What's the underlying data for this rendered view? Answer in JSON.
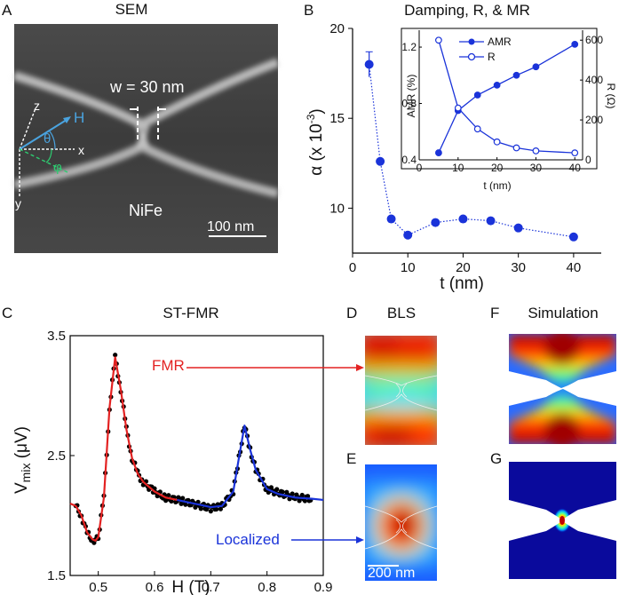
{
  "panel_letters": {
    "a": "A",
    "b": "B",
    "c": "C",
    "d": "D",
    "e": "E",
    "f": "F",
    "g": "G"
  },
  "sem": {
    "title": "SEM",
    "width_label": "w = 30 nm",
    "material_label": "NiFe",
    "scale_bar_label": "100 nm",
    "axis_x": "x",
    "axis_y": "y",
    "axis_z": "z",
    "field_label": "H",
    "theta_label": "θ",
    "phi_label": "φ",
    "colors": {
      "field": "#4aa3df",
      "phi": "#2ecc71"
    }
  },
  "images": {
    "bls_title": "BLS",
    "sim_title": "Simulation",
    "bls_scale_label": "200 nm"
  },
  "chart_data": [
    {
      "id": "B",
      "type": "scatter",
      "title": "Damping, R, & MR",
      "xlabel": "t (nm)",
      "ylabel": "α (x 10",
      "ylabel_sup": "-3",
      "ylabel_end": ")",
      "xlim": [
        0,
        45
      ],
      "ylim": [
        7.5,
        20
      ],
      "xticks": [
        0,
        10,
        20,
        30,
        40
      ],
      "yticks": [
        10,
        15,
        20
      ],
      "color": "#1a33d9",
      "series": [
        {
          "x": [
            3,
            5,
            7,
            10,
            15,
            20,
            25,
            30,
            40
          ],
          "y": [
            18.0,
            12.6,
            9.4,
            8.5,
            9.2,
            9.4,
            9.3,
            8.9,
            8.4
          ],
          "error": [
            0.7,
            0,
            0,
            0,
            0,
            0,
            0,
            0,
            0
          ]
        }
      ]
    },
    {
      "id": "B-inset",
      "type": "line",
      "xlabel": "t (nm)",
      "ylabel_left": "AMR (%)",
      "ylabel_right": "R (Ω)",
      "xlim": [
        0,
        42
      ],
      "ylim_left": [
        0.4,
        1.32
      ],
      "ylim_right": [
        0,
        650
      ],
      "xticks": [
        0,
        10,
        20,
        30,
        40
      ],
      "yticks_left": [
        "0.4",
        "0.8",
        "1.2"
      ],
      "yticks_right": [
        0,
        200,
        400,
        600
      ],
      "color": "#1a33d9",
      "legend_position": "top",
      "series": [
        {
          "name": "AMR",
          "axis": "left",
          "marker": "filled",
          "x": [
            5,
            10,
            15,
            20,
            25,
            30,
            40
          ],
          "y": [
            0.45,
            0.75,
            0.86,
            0.93,
            1.0,
            1.06,
            1.22
          ]
        },
        {
          "name": "R",
          "axis": "right",
          "marker": "open",
          "x": [
            5,
            10,
            15,
            20,
            25,
            30,
            40
          ],
          "y": [
            600,
            260,
            155,
            90,
            60,
            45,
            35
          ]
        }
      ]
    },
    {
      "id": "C",
      "type": "line",
      "title": "ST-FMR",
      "xlabel": "H (T)",
      "ylabel": "V",
      "ylabel_sub": "mix",
      "ylabel_end": " (μV)",
      "xlim": [
        0.45,
        0.9
      ],
      "ylim": [
        1.5,
        3.5
      ],
      "xticks": [
        "0.5",
        "0.6",
        "0.7",
        "0.8",
        "0.9"
      ],
      "yticks": [
        "1.5",
        "2.5",
        "3.5"
      ],
      "annotations": [
        {
          "text": "FMR",
          "color": "#e32222",
          "x": 0.53,
          "y": 3.05
        },
        {
          "text": "Localized",
          "color": "#1a33d9",
          "x": 0.77,
          "y": 1.78
        }
      ],
      "series": [
        {
          "role": "data",
          "color": "#000000",
          "x": [
            0.46,
            0.47,
            0.48,
            0.49,
            0.495,
            0.5,
            0.51,
            0.52,
            0.53,
            0.54,
            0.55,
            0.56,
            0.57,
            0.58,
            0.6,
            0.62,
            0.65,
            0.7,
            0.72,
            0.74,
            0.75,
            0.76,
            0.77,
            0.78,
            0.8,
            0.85,
            0.88
          ],
          "y": [
            2.08,
            2.0,
            1.85,
            1.8,
            1.79,
            1.82,
            2.15,
            2.9,
            3.32,
            3.05,
            2.72,
            2.48,
            2.35,
            2.28,
            2.2,
            2.15,
            2.12,
            2.06,
            2.08,
            2.2,
            2.48,
            2.75,
            2.55,
            2.38,
            2.22,
            2.15,
            2.14
          ]
        },
        {
          "role": "fit-fmr",
          "color": "#e32222",
          "x": [
            0.45,
            0.46,
            0.47,
            0.48,
            0.49,
            0.495,
            0.5,
            0.51,
            0.52,
            0.53,
            0.54,
            0.55,
            0.56,
            0.57,
            0.58,
            0.6,
            0.62,
            0.64
          ],
          "y": [
            2.1,
            2.08,
            2.0,
            1.86,
            1.8,
            1.79,
            1.82,
            2.15,
            2.9,
            3.32,
            3.05,
            2.72,
            2.48,
            2.35,
            2.28,
            2.2,
            2.15,
            2.13
          ]
        },
        {
          "role": "fit-localized",
          "color": "#1a33d9",
          "x": [
            0.64,
            0.66,
            0.68,
            0.7,
            0.72,
            0.74,
            0.75,
            0.76,
            0.77,
            0.78,
            0.8,
            0.82,
            0.85,
            0.88,
            0.9
          ],
          "y": [
            2.13,
            2.11,
            2.09,
            2.07,
            2.08,
            2.2,
            2.48,
            2.75,
            2.55,
            2.38,
            2.22,
            2.18,
            2.15,
            2.14,
            2.13
          ]
        }
      ]
    }
  ]
}
